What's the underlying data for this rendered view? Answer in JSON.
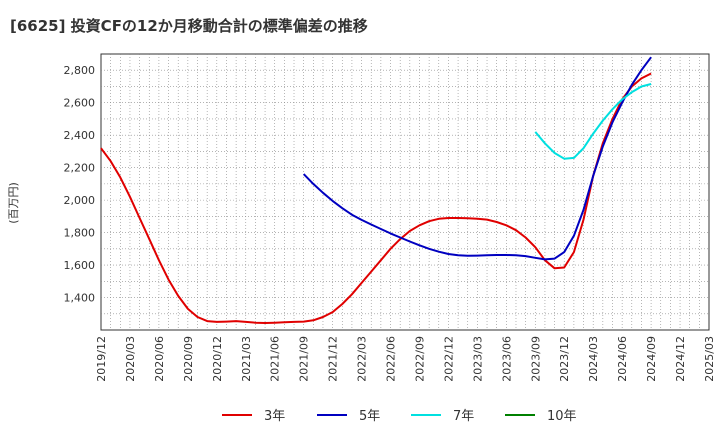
{
  "chart_data": {
    "type": "line",
    "title": "[6625]  投資CFの12か月移動合計の標準偏差の推移",
    "ylabel": "(百万円)",
    "xlabel": "",
    "ylim": [
      1200,
      2900
    ],
    "yticks": [
      1400,
      1600,
      1800,
      2000,
      2200,
      2400,
      2600,
      2800
    ],
    "xlim": [
      "2019-12",
      "2025-03"
    ],
    "xticks": [
      "2019/12",
      "2020/03",
      "2020/06",
      "2020/09",
      "2020/12",
      "2021/03",
      "2021/06",
      "2021/09",
      "2021/12",
      "2022/03",
      "2022/06",
      "2022/09",
      "2022/12",
      "2023/03",
      "2023/06",
      "2023/09",
      "2023/12",
      "2024/03",
      "2024/06",
      "2024/09",
      "2024/12",
      "2025/03"
    ],
    "grid": true,
    "legend_position": "bottom",
    "series": [
      {
        "name": "3年",
        "color": "#e00000",
        "x": [
          "2019-12",
          "2020-01",
          "2020-02",
          "2020-03",
          "2020-04",
          "2020-05",
          "2020-06",
          "2020-07",
          "2020-08",
          "2020-09",
          "2020-10",
          "2020-11",
          "2020-12",
          "2021-01",
          "2021-02",
          "2021-03",
          "2021-04",
          "2021-05",
          "2021-06",
          "2021-07",
          "2021-08",
          "2021-09",
          "2021-10",
          "2021-11",
          "2021-12",
          "2022-01",
          "2022-02",
          "2022-03",
          "2022-04",
          "2022-05",
          "2022-06",
          "2022-07",
          "2022-08",
          "2022-09",
          "2022-10",
          "2022-11",
          "2022-12",
          "2023-01",
          "2023-02",
          "2023-03",
          "2023-04",
          "2023-05",
          "2023-06",
          "2023-07",
          "2023-08",
          "2023-09",
          "2023-10",
          "2023-11",
          "2023-12",
          "2024-01",
          "2024-02",
          "2024-03",
          "2024-04",
          "2024-05",
          "2024-06",
          "2024-07",
          "2024-08",
          "2024-09"
        ],
        "values": [
          2320,
          2240,
          2140,
          2020,
          1890,
          1760,
          1630,
          1510,
          1410,
          1330,
          1280,
          1255,
          1250,
          1252,
          1255,
          1250,
          1245,
          1243,
          1245,
          1248,
          1250,
          1252,
          1260,
          1280,
          1310,
          1360,
          1420,
          1490,
          1560,
          1630,
          1700,
          1760,
          1810,
          1845,
          1870,
          1885,
          1890,
          1890,
          1888,
          1885,
          1880,
          1865,
          1845,
          1815,
          1770,
          1710,
          1630,
          1580,
          1585,
          1680,
          1880,
          2150,
          2350,
          2500,
          2620,
          2700,
          2750,
          2780
        ]
      },
      {
        "name": "5年",
        "color": "#0000c0",
        "x": [
          "2021-09",
          "2021-10",
          "2021-11",
          "2021-12",
          "2022-01",
          "2022-02",
          "2022-03",
          "2022-04",
          "2022-05",
          "2022-06",
          "2022-07",
          "2022-08",
          "2022-09",
          "2022-10",
          "2022-11",
          "2022-12",
          "2023-01",
          "2023-02",
          "2023-03",
          "2023-04",
          "2023-05",
          "2023-06",
          "2023-07",
          "2023-08",
          "2023-09",
          "2023-10",
          "2023-11",
          "2023-12",
          "2024-01",
          "2024-02",
          "2024-03",
          "2024-04",
          "2024-05",
          "2024-06",
          "2024-07",
          "2024-08",
          "2024-09"
        ],
        "values": [
          2160,
          2100,
          2045,
          1995,
          1950,
          1910,
          1878,
          1850,
          1822,
          1795,
          1770,
          1745,
          1722,
          1700,
          1682,
          1668,
          1660,
          1657,
          1658,
          1660,
          1662,
          1662,
          1660,
          1655,
          1645,
          1635,
          1640,
          1680,
          1780,
          1940,
          2150,
          2330,
          2480,
          2600,
          2710,
          2800,
          2880
        ]
      },
      {
        "name": "7年",
        "color": "#00e0e0",
        "x": [
          "2023-09",
          "2023-10",
          "2023-11",
          "2023-12",
          "2024-01",
          "2024-02",
          "2024-03",
          "2024-04",
          "2024-05",
          "2024-06",
          "2024-07",
          "2024-08",
          "2024-09"
        ],
        "values": [
          2420,
          2350,
          2290,
          2255,
          2260,
          2320,
          2410,
          2490,
          2560,
          2620,
          2665,
          2700,
          2715
        ]
      },
      {
        "name": "10年",
        "color": "#008000",
        "x": [],
        "values": []
      }
    ]
  }
}
